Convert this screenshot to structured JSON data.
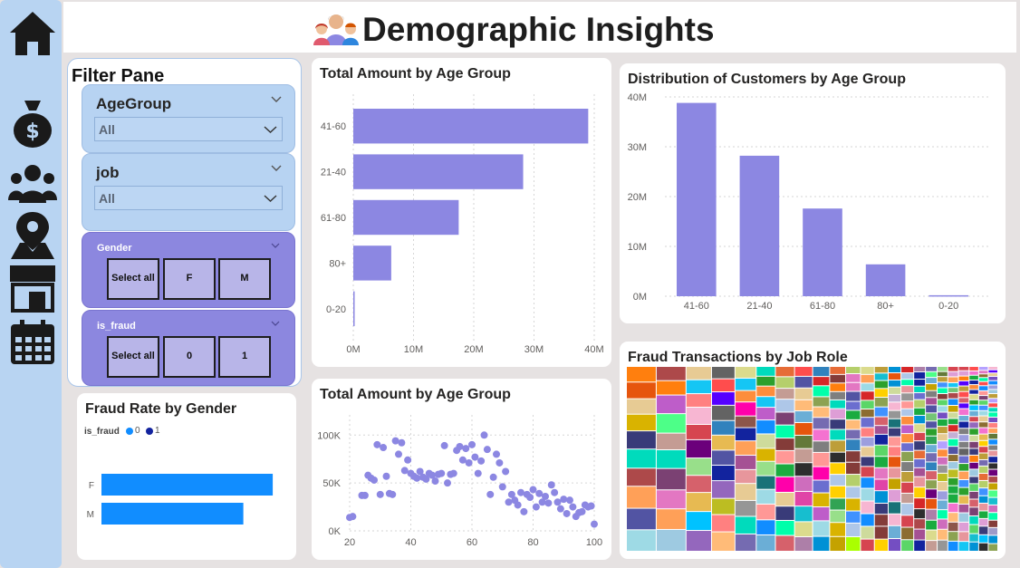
{
  "page": {
    "title": "Demographic Insights"
  },
  "nav": {
    "items": [
      {
        "name": "home-icon"
      },
      {
        "name": "money-bag-icon"
      },
      {
        "name": "customers-icon"
      },
      {
        "name": "map-location-icon"
      },
      {
        "name": "store-icon"
      },
      {
        "name": "calendar-icon"
      }
    ]
  },
  "filter_pane": {
    "title": "Filter Pane",
    "age_group": {
      "label": "AgeGroup",
      "value": "All"
    },
    "job": {
      "label": "job",
      "value": "All"
    },
    "gender": {
      "label": "Gender",
      "options": [
        "Select all",
        "F",
        "M"
      ]
    },
    "is_fraud": {
      "label": "is_fraud",
      "options": [
        "Select all",
        "0",
        "1"
      ]
    }
  },
  "colors": {
    "bar": "#8c87e2",
    "gender_bar": "#118dff",
    "legend_dark": "#12239e"
  },
  "chart_data": [
    {
      "id": "total-amount-bar",
      "type": "bar",
      "orientation": "horizontal",
      "title": "Total Amount by Age Group",
      "categories": [
        "41-60",
        "21-40",
        "61-80",
        "80+",
        "0-20"
      ],
      "values": [
        39000000,
        28200000,
        17500000,
        6300000,
        100000
      ],
      "xlim": [
        0,
        40000000
      ],
      "xticks": [
        "0M",
        "10M",
        "20M",
        "30M",
        "40M"
      ]
    },
    {
      "id": "customers-column",
      "type": "bar",
      "orientation": "vertical",
      "title": "Distribution of Customers by Age Group",
      "categories": [
        "41-60",
        "21-40",
        "61-80",
        "80+",
        "0-20"
      ],
      "values": [
        38800000,
        28200000,
        17600000,
        6400000,
        200000
      ],
      "ylim": [
        0,
        40000000
      ],
      "yticks": [
        "0M",
        "10M",
        "20M",
        "30M",
        "40M"
      ]
    },
    {
      "id": "fraud-rate-gender",
      "type": "bar",
      "orientation": "horizontal",
      "title": "Fraud Rate by Gender",
      "legend_title": "is_fraud",
      "legend": [
        "0",
        "1"
      ],
      "categories": [
        "F",
        "M"
      ],
      "values": [
        0.99,
        0.82
      ],
      "xlim": [
        0,
        1
      ]
    },
    {
      "id": "amount-scatter",
      "type": "scatter",
      "title": "Total Amount by Age Group",
      "xlim": [
        20,
        100
      ],
      "ylim": [
        0,
        105000
      ],
      "xticks": [
        "20",
        "40",
        "60",
        "80",
        "100"
      ],
      "yticks": [
        "0K",
        "50K",
        "100K"
      ],
      "points": [
        [
          20,
          14000
        ],
        [
          21,
          15000
        ],
        [
          24,
          37000
        ],
        [
          25,
          37000
        ],
        [
          26,
          58000
        ],
        [
          27,
          55000
        ],
        [
          28,
          53000
        ],
        [
          29,
          90000
        ],
        [
          30,
          38000
        ],
        [
          31,
          87000
        ],
        [
          32,
          57000
        ],
        [
          33,
          39000
        ],
        [
          34,
          38000
        ],
        [
          35,
          94000
        ],
        [
          36,
          80000
        ],
        [
          37,
          92000
        ],
        [
          38,
          63000
        ],
        [
          39,
          74000
        ],
        [
          40,
          60000
        ],
        [
          41,
          57000
        ],
        [
          42,
          55000
        ],
        [
          43,
          62000
        ],
        [
          44,
          56000
        ],
        [
          45,
          54000
        ],
        [
          46,
          60000
        ],
        [
          47,
          58000
        ],
        [
          48,
          52000
        ],
        [
          49,
          59000
        ],
        [
          50,
          60000
        ],
        [
          51,
          89000
        ],
        [
          52,
          50000
        ],
        [
          53,
          59000
        ],
        [
          54,
          60000
        ],
        [
          55,
          84000
        ],
        [
          56,
          88000
        ],
        [
          57,
          74000
        ],
        [
          58,
          86000
        ],
        [
          59,
          71000
        ],
        [
          60,
          90000
        ],
        [
          61,
          77000
        ],
        [
          62,
          60000
        ],
        [
          63,
          73000
        ],
        [
          64,
          100000
        ],
        [
          65,
          85000
        ],
        [
          66,
          38000
        ],
        [
          67,
          56000
        ],
        [
          68,
          80000
        ],
        [
          69,
          71000
        ],
        [
          70,
          46000
        ],
        [
          71,
          62000
        ],
        [
          72,
          30000
        ],
        [
          73,
          38000
        ],
        [
          74,
          32000
        ],
        [
          75,
          27000
        ],
        [
          76,
          40000
        ],
        [
          77,
          20000
        ],
        [
          78,
          38000
        ],
        [
          79,
          35000
        ],
        [
          80,
          43000
        ],
        [
          81,
          25000
        ],
        [
          82,
          39000
        ],
        [
          83,
          30000
        ],
        [
          84,
          36000
        ],
        [
          85,
          29000
        ],
        [
          86,
          48000
        ],
        [
          87,
          40000
        ],
        [
          88,
          30000
        ],
        [
          89,
          23000
        ],
        [
          90,
          33000
        ],
        [
          91,
          18000
        ],
        [
          92,
          32000
        ],
        [
          93,
          25000
        ],
        [
          94,
          15000
        ],
        [
          95,
          19000
        ],
        [
          96,
          20000
        ],
        [
          97,
          27000
        ],
        [
          98,
          25000
        ],
        [
          99,
          26000
        ],
        [
          100,
          7000
        ]
      ]
    },
    {
      "id": "fraud-treemap",
      "type": "heatmap",
      "title": "Fraud Transactions by Job Role"
    }
  ]
}
